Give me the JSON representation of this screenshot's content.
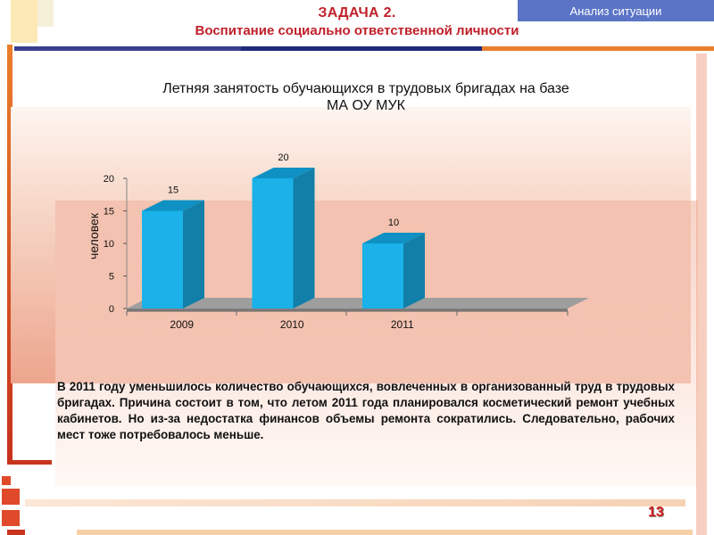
{
  "header": {
    "tag_label": "Анализ ситуации",
    "task_title": "ЗАДАЧА 2.",
    "subtitle": "Воспитание социально ответственной личности"
  },
  "chart_data": {
    "type": "bar",
    "title_line1": "Летняя занятость обучающихся в трудовых бригадах на базе",
    "title_line2": "МА ОУ МУК",
    "categories": [
      "2009",
      "2010",
      "2011"
    ],
    "values": [
      15,
      20,
      10
    ],
    "data_labels": [
      "15",
      "20",
      "10"
    ],
    "ylabel": "человек",
    "ylim": [
      0,
      20
    ],
    "yticks": [
      "0",
      "5",
      "10",
      "15",
      "20"
    ],
    "bar_color": "#1ab2e8",
    "three_d": true,
    "grid": false
  },
  "body_text": "В 2011 году уменьшилось количество обучающихся, вовлеченных в организованный труд в трудовых бригадах. Причина состоит в том, что летом 2011 года планировался косметический ремонт учебных кабинетов. Но из-за недостатка финансов объемы ремонта сократились. Следовательно, рабочих мест тоже потребовалось меньше.",
  "page_number": "13",
  "colors": {
    "accent_red": "#c0202a",
    "accent_orange": "#e8743a",
    "tag_blue": "#5b74c6",
    "navy_bar": "#1f2a7a"
  }
}
